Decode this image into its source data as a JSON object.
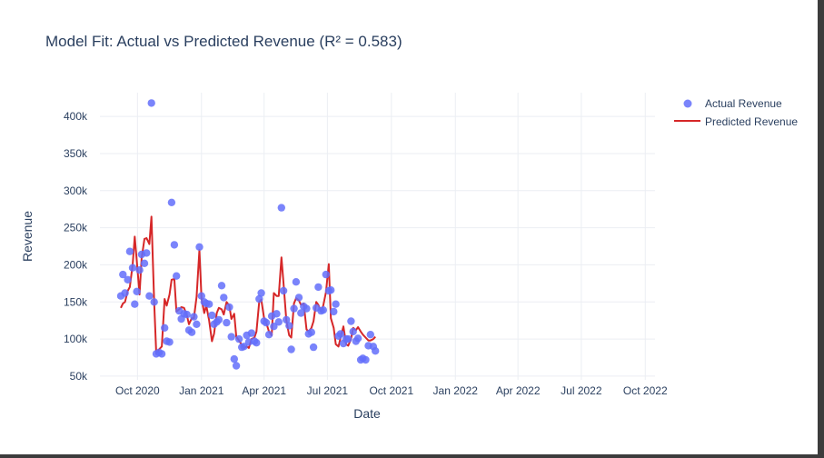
{
  "chart_data": {
    "type": "scatter",
    "title": "Model Fit: Actual vs Predicted Revenue (R² = 0.583)",
    "xlabel": "Date",
    "ylabel": "Revenue",
    "x_ticks": [
      "Oct 2020",
      "Jan 2021",
      "Apr 2021",
      "Jul 2021",
      "Oct 2021",
      "Jan 2022",
      "Apr 2022",
      "Jul 2022",
      "Oct 2022"
    ],
    "x_tick_dates": [
      "2020-10-01",
      "2021-01-01",
      "2021-04-01",
      "2021-07-01",
      "2021-10-01",
      "2022-01-01",
      "2022-04-01",
      "2022-07-01",
      "2022-10-01"
    ],
    "xlim": [
      "2020-08-08",
      "2022-10-15"
    ],
    "y_ticks": [
      "50k",
      "100k",
      "150k",
      "200k",
      "250k",
      "300k",
      "350k",
      "400k"
    ],
    "y_tick_values": [
      50000,
      100000,
      150000,
      200000,
      250000,
      300000,
      350000,
      400000
    ],
    "ylim": [
      45000,
      432000
    ],
    "grid": true,
    "legend_position": "top-right",
    "colors": {
      "actual": "#636efa",
      "predicted": "#d62728",
      "text": "#2a3f5f"
    },
    "series": [
      {
        "name": "Actual Revenue",
        "mode": "markers",
        "points": [
          [
            "2020-09-07",
            158000
          ],
          [
            "2020-09-10",
            187000
          ],
          [
            "2020-09-13",
            162000
          ],
          [
            "2020-09-17",
            180000
          ],
          [
            "2020-09-20",
            218000
          ],
          [
            "2020-09-24",
            196000
          ],
          [
            "2020-09-27",
            147000
          ],
          [
            "2020-09-30",
            164000
          ],
          [
            "2020-10-04",
            193000
          ],
          [
            "2020-10-07",
            214000
          ],
          [
            "2020-10-11",
            202000
          ],
          [
            "2020-10-14",
            216000
          ],
          [
            "2020-10-18",
            158000
          ],
          [
            "2020-10-21",
            418000
          ],
          [
            "2020-10-25",
            150000
          ],
          [
            "2020-10-28",
            80000
          ],
          [
            "2020-11-01",
            82000
          ],
          [
            "2020-11-05",
            80000
          ],
          [
            "2020-11-09",
            115000
          ],
          [
            "2020-11-12",
            97000
          ],
          [
            "2020-11-16",
            96000
          ],
          [
            "2020-11-19",
            284000
          ],
          [
            "2020-11-23",
            227000
          ],
          [
            "2020-11-26",
            185000
          ],
          [
            "2020-11-30",
            138000
          ],
          [
            "2020-12-03",
            127000
          ],
          [
            "2020-12-07",
            134000
          ],
          [
            "2020-12-11",
            133000
          ],
          [
            "2020-12-14",
            112000
          ],
          [
            "2020-12-18",
            109000
          ],
          [
            "2020-12-21",
            130000
          ],
          [
            "2020-12-25",
            120000
          ],
          [
            "2020-12-29",
            224000
          ],
          [
            "2021-01-01",
            158000
          ],
          [
            "2021-01-05",
            150000
          ],
          [
            "2021-01-08",
            148000
          ],
          [
            "2021-01-12",
            147000
          ],
          [
            "2021-01-16",
            132000
          ],
          [
            "2021-01-19",
            120000
          ],
          [
            "2021-01-23",
            123000
          ],
          [
            "2021-01-26",
            126000
          ],
          [
            "2021-01-30",
            172000
          ],
          [
            "2021-02-02",
            156000
          ],
          [
            "2021-02-06",
            122000
          ],
          [
            "2021-02-10",
            143000
          ],
          [
            "2021-02-13",
            103000
          ],
          [
            "2021-02-17",
            73000
          ],
          [
            "2021-02-20",
            64000
          ],
          [
            "2021-02-24",
            100000
          ],
          [
            "2021-02-28",
            89000
          ],
          [
            "2021-03-03",
            90000
          ],
          [
            "2021-03-07",
            105000
          ],
          [
            "2021-03-10",
            96000
          ],
          [
            "2021-03-14",
            108000
          ],
          [
            "2021-03-18",
            97000
          ],
          [
            "2021-03-21",
            95000
          ],
          [
            "2021-03-25",
            154000
          ],
          [
            "2021-03-28",
            162000
          ],
          [
            "2021-04-01",
            124000
          ],
          [
            "2021-04-04",
            122000
          ],
          [
            "2021-04-08",
            106000
          ],
          [
            "2021-04-12",
            131000
          ],
          [
            "2021-04-15",
            117000
          ],
          [
            "2021-04-19",
            134000
          ],
          [
            "2021-04-22",
            123000
          ],
          [
            "2021-04-26",
            277000
          ],
          [
            "2021-04-29",
            165000
          ],
          [
            "2021-05-03",
            126000
          ],
          [
            "2021-05-07",
            118000
          ],
          [
            "2021-05-10",
            86000
          ],
          [
            "2021-05-14",
            141000
          ],
          [
            "2021-05-17",
            177000
          ],
          [
            "2021-05-21",
            156000
          ],
          [
            "2021-05-24",
            135000
          ],
          [
            "2021-05-28",
            144000
          ],
          [
            "2021-06-01",
            141000
          ],
          [
            "2021-06-04",
            107000
          ],
          [
            "2021-06-08",
            109000
          ],
          [
            "2021-06-11",
            89000
          ],
          [
            "2021-06-15",
            142000
          ],
          [
            "2021-06-18",
            170000
          ],
          [
            "2021-06-22",
            138000
          ],
          [
            "2021-06-25",
            139000
          ],
          [
            "2021-06-29",
            187000
          ],
          [
            "2021-07-03",
            165000
          ],
          [
            "2021-07-06",
            166000
          ],
          [
            "2021-07-10",
            137000
          ],
          [
            "2021-07-13",
            147000
          ],
          [
            "2021-07-17",
            104000
          ],
          [
            "2021-07-20",
            107000
          ],
          [
            "2021-07-24",
            94000
          ],
          [
            "2021-07-28",
            100000
          ],
          [
            "2021-07-31",
            100000
          ],
          [
            "2021-08-04",
            124000
          ],
          [
            "2021-08-07",
            110000
          ],
          [
            "2021-08-11",
            97000
          ],
          [
            "2021-08-14",
            101000
          ],
          [
            "2021-08-18",
            72000
          ],
          [
            "2021-08-21",
            74000
          ],
          [
            "2021-08-25",
            72000
          ],
          [
            "2021-08-29",
            91000
          ],
          [
            "2021-09-01",
            106000
          ],
          [
            "2021-09-05",
            90000
          ],
          [
            "2021-09-08",
            84000
          ]
        ]
      },
      {
        "name": "Predicted Revenue",
        "mode": "lines",
        "points": [
          [
            "2020-09-07",
            142000
          ],
          [
            "2020-09-10",
            148000
          ],
          [
            "2020-09-13",
            150000
          ],
          [
            "2020-09-17",
            165000
          ],
          [
            "2020-09-20",
            170000
          ],
          [
            "2020-09-24",
            200000
          ],
          [
            "2020-09-27",
            238000
          ],
          [
            "2020-09-30",
            205000
          ],
          [
            "2020-10-04",
            160000
          ],
          [
            "2020-10-07",
            209000
          ],
          [
            "2020-10-11",
            235000
          ],
          [
            "2020-10-14",
            236000
          ],
          [
            "2020-10-18",
            228000
          ],
          [
            "2020-10-21",
            265000
          ],
          [
            "2020-10-25",
            150000
          ],
          [
            "2020-10-28",
            80000
          ],
          [
            "2020-11-01",
            86000
          ],
          [
            "2020-11-05",
            90000
          ],
          [
            "2020-11-09",
            154000
          ],
          [
            "2020-11-12",
            145000
          ],
          [
            "2020-11-16",
            160000
          ],
          [
            "2020-11-19",
            180000
          ],
          [
            "2020-11-23",
            181000
          ],
          [
            "2020-11-26",
            137000
          ],
          [
            "2020-11-30",
            140000
          ],
          [
            "2020-12-03",
            143000
          ],
          [
            "2020-12-07",
            142000
          ],
          [
            "2020-12-11",
            132000
          ],
          [
            "2020-12-14",
            120000
          ],
          [
            "2020-12-18",
            128000
          ],
          [
            "2020-12-21",
            128000
          ],
          [
            "2020-12-25",
            157000
          ],
          [
            "2020-12-29",
            220000
          ],
          [
            "2021-01-01",
            155000
          ],
          [
            "2021-01-05",
            135000
          ],
          [
            "2021-01-08",
            145000
          ],
          [
            "2021-01-12",
            125000
          ],
          [
            "2021-01-16",
            97000
          ],
          [
            "2021-01-19",
            107000
          ],
          [
            "2021-01-23",
            135000
          ],
          [
            "2021-01-26",
            142000
          ],
          [
            "2021-01-30",
            140000
          ],
          [
            "2021-02-02",
            133000
          ],
          [
            "2021-02-06",
            150000
          ],
          [
            "2021-02-10",
            145000
          ],
          [
            "2021-02-13",
            127000
          ],
          [
            "2021-02-17",
            134000
          ],
          [
            "2021-02-20",
            103000
          ],
          [
            "2021-02-24",
            98000
          ],
          [
            "2021-02-28",
            92000
          ],
          [
            "2021-03-03",
            88000
          ],
          [
            "2021-03-07",
            90000
          ],
          [
            "2021-03-10",
            88000
          ],
          [
            "2021-03-14",
            100000
          ],
          [
            "2021-03-18",
            102000
          ],
          [
            "2021-03-21",
            110000
          ],
          [
            "2021-03-25",
            150000
          ],
          [
            "2021-03-28",
            153000
          ],
          [
            "2021-04-01",
            128000
          ],
          [
            "2021-04-04",
            122000
          ],
          [
            "2021-04-08",
            110000
          ],
          [
            "2021-04-12",
            105000
          ],
          [
            "2021-04-15",
            162000
          ],
          [
            "2021-04-19",
            158000
          ],
          [
            "2021-04-22",
            158000
          ],
          [
            "2021-04-26",
            210000
          ],
          [
            "2021-04-29",
            175000
          ],
          [
            "2021-05-03",
            125000
          ],
          [
            "2021-05-07",
            105000
          ],
          [
            "2021-05-10",
            102000
          ],
          [
            "2021-05-14",
            148000
          ],
          [
            "2021-05-17",
            155000
          ],
          [
            "2021-05-21",
            152000
          ],
          [
            "2021-05-24",
            146000
          ],
          [
            "2021-05-28",
            148000
          ],
          [
            "2021-06-01",
            113000
          ],
          [
            "2021-06-04",
            110000
          ],
          [
            "2021-06-08",
            115000
          ],
          [
            "2021-06-11",
            124000
          ],
          [
            "2021-06-15",
            150000
          ],
          [
            "2021-06-18",
            146000
          ],
          [
            "2021-06-22",
            137000
          ],
          [
            "2021-06-25",
            145000
          ],
          [
            "2021-06-29",
            163000
          ],
          [
            "2021-07-03",
            201000
          ],
          [
            "2021-07-06",
            128000
          ],
          [
            "2021-07-10",
            115000
          ],
          [
            "2021-07-13",
            93000
          ],
          [
            "2021-07-17",
            90000
          ],
          [
            "2021-07-20",
            102000
          ],
          [
            "2021-07-24",
            117000
          ],
          [
            "2021-07-28",
            93000
          ],
          [
            "2021-07-31",
            91000
          ],
          [
            "2021-08-04",
            100000
          ],
          [
            "2021-08-07",
            115000
          ],
          [
            "2021-08-11",
            112000
          ],
          [
            "2021-08-14",
            116000
          ],
          [
            "2021-08-18",
            110000
          ],
          [
            "2021-08-21",
            106000
          ],
          [
            "2021-08-25",
            102000
          ],
          [
            "2021-08-29",
            98000
          ],
          [
            "2021-09-01",
            98000
          ],
          [
            "2021-09-05",
            100000
          ],
          [
            "2021-09-08",
            103000
          ]
        ]
      }
    ]
  }
}
